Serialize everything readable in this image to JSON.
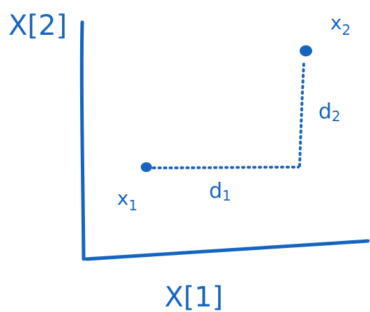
{
  "diagram": {
    "ink_color": "#1565c0",
    "background": "#ffffff",
    "y_axis_label": "X[2]",
    "x_axis_label": "X[1]",
    "point_a": {
      "base": "x",
      "sub": "1"
    },
    "point_b": {
      "base": "x",
      "sub": "2"
    },
    "horizontal_distance": {
      "base": "d",
      "sub": "1"
    },
    "vertical_distance": {
      "base": "d",
      "sub": "2"
    }
  }
}
